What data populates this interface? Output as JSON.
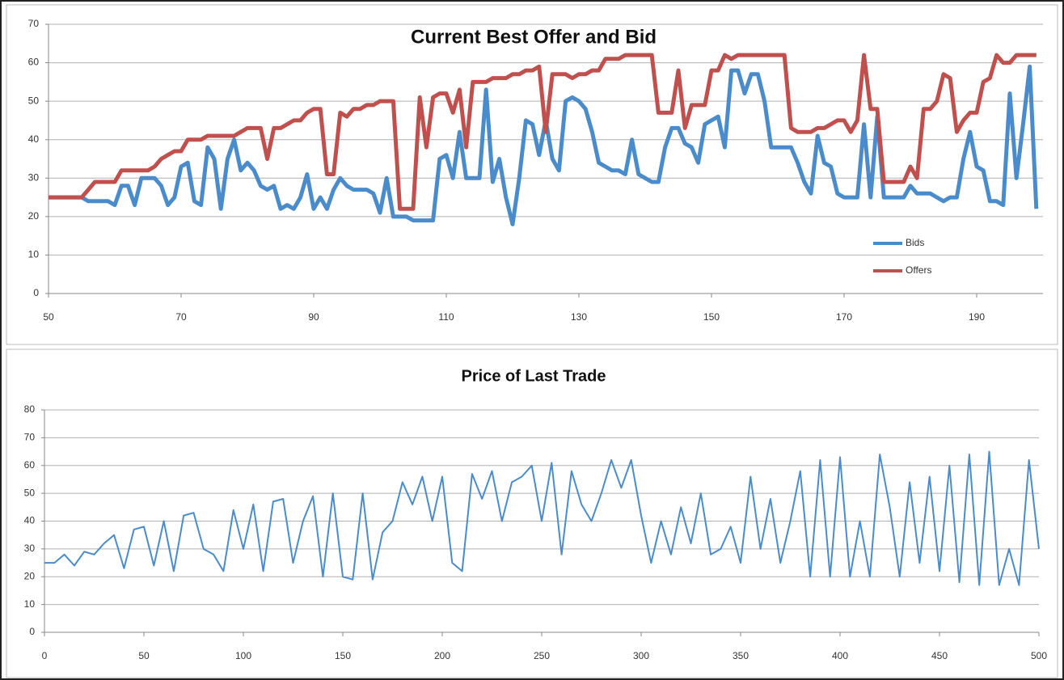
{
  "chart_data": [
    {
      "type": "line",
      "title": "Current Best Offer and Bid",
      "x": [
        50,
        51,
        52,
        53,
        54,
        55,
        56,
        57,
        58,
        59,
        60,
        61,
        62,
        63,
        64,
        65,
        66,
        67,
        68,
        69,
        70,
        71,
        72,
        73,
        74,
        75,
        76,
        77,
        78,
        79,
        80,
        81,
        82,
        83,
        84,
        85,
        86,
        87,
        88,
        89,
        90,
        91,
        92,
        93,
        94,
        95,
        96,
        97,
        98,
        99,
        100,
        101,
        102,
        103,
        104,
        105,
        106,
        107,
        108,
        109,
        110,
        111,
        112,
        113,
        114,
        115,
        116,
        117,
        118,
        119,
        120,
        121,
        122,
        123,
        124,
        125,
        126,
        127,
        128,
        129,
        130,
        131,
        132,
        133,
        134,
        135,
        136,
        137,
        138,
        139,
        140,
        141,
        142,
        143,
        144,
        145,
        146,
        147,
        148,
        149,
        150,
        151,
        152,
        153,
        154,
        155,
        156,
        157,
        158,
        159,
        160,
        161,
        162,
        163,
        164,
        165,
        166,
        167,
        168,
        169,
        170,
        171,
        172,
        173,
        174,
        175,
        176,
        177,
        178,
        179,
        180,
        181,
        182,
        183,
        184,
        185,
        186,
        187,
        188,
        189,
        190,
        191,
        192,
        193,
        194,
        195,
        196,
        197,
        198,
        199
      ],
      "series": [
        {
          "name": "Bids",
          "color": "#4a8ccb",
          "values": [
            25,
            25,
            25,
            25,
            25,
            25,
            24,
            24,
            24,
            24,
            23,
            28,
            28,
            23,
            30,
            30,
            30,
            28,
            23,
            25,
            33,
            34,
            24,
            23,
            38,
            35,
            22,
            35,
            40,
            32,
            34,
            32,
            28,
            27,
            28,
            22,
            23,
            22,
            25,
            31,
            22,
            25,
            22,
            27,
            30,
            28,
            27,
            27,
            27,
            26,
            21,
            30,
            20,
            20,
            20,
            19,
            19,
            19,
            19,
            35,
            36,
            30,
            42,
            30,
            30,
            30,
            53,
            29,
            35,
            25,
            18,
            30,
            45,
            44,
            36,
            45,
            35,
            32,
            50,
            51,
            50,
            48,
            42,
            34,
            33,
            32,
            32,
            31,
            40,
            31,
            30,
            29,
            29,
            38,
            43,
            43,
            39,
            38,
            34,
            44,
            45,
            46,
            38,
            58,
            58,
            52,
            57,
            57,
            50,
            38,
            38,
            38,
            38,
            34,
            29,
            26,
            41,
            34,
            33,
            26,
            25,
            25,
            25,
            44,
            25,
            46,
            25,
            25,
            25,
            25,
            28,
            26,
            26,
            26,
            25,
            24,
            25,
            25,
            35,
            42,
            33,
            32,
            24,
            24,
            23,
            52,
            30,
            44,
            59,
            22
          ]
        },
        {
          "name": "Offers",
          "color": "#c0504d",
          "values": [
            25,
            25,
            25,
            25,
            25,
            25,
            27,
            29,
            29,
            29,
            29,
            32,
            32,
            32,
            32,
            32,
            33,
            35,
            36,
            37,
            37,
            40,
            40,
            40,
            41,
            41,
            41,
            41,
            41,
            42,
            43,
            43,
            43,
            35,
            43,
            43,
            44,
            45,
            45,
            47,
            48,
            48,
            31,
            31,
            47,
            46,
            48,
            48,
            49,
            49,
            50,
            50,
            50,
            22,
            22,
            22,
            51,
            38,
            51,
            52,
            52,
            47,
            53,
            38,
            55,
            55,
            55,
            56,
            56,
            56,
            57,
            57,
            58,
            58,
            59,
            42,
            57,
            57,
            57,
            56,
            57,
            57,
            58,
            58,
            61,
            61,
            61,
            62,
            62,
            62,
            62,
            62,
            47,
            47,
            47,
            58,
            43,
            49,
            49,
            49,
            58,
            58,
            62,
            61,
            62,
            62,
            62,
            62,
            62,
            62,
            62,
            62,
            43,
            42,
            42,
            42,
            43,
            43,
            44,
            45,
            45,
            42,
            45,
            62,
            48,
            48,
            29,
            29,
            29,
            29,
            33,
            30,
            48,
            48,
            50,
            57,
            56,
            42,
            45,
            47,
            47,
            55,
            56,
            62,
            60,
            60,
            62,
            62,
            62,
            62
          ]
        }
      ],
      "xlim": [
        50,
        200
      ],
      "xticks": [
        50,
        70,
        90,
        110,
        130,
        150,
        170,
        190
      ],
      "ylim": [
        0,
        70
      ],
      "yticks": [
        0,
        10,
        20,
        30,
        40,
        50,
        60,
        70
      ],
      "grid": true,
      "legend": "lower right"
    },
    {
      "type": "line",
      "title": "Price of Last Trade",
      "x": [
        0,
        5,
        10,
        15,
        20,
        25,
        30,
        35,
        40,
        45,
        50,
        55,
        60,
        65,
        70,
        75,
        80,
        85,
        90,
        95,
        100,
        105,
        110,
        115,
        120,
        125,
        130,
        135,
        140,
        145,
        150,
        155,
        160,
        165,
        170,
        175,
        180,
        185,
        190,
        195,
        200,
        205,
        210,
        215,
        220,
        225,
        230,
        235,
        240,
        245,
        250,
        255,
        260,
        265,
        270,
        275,
        280,
        285,
        290,
        295,
        300,
        305,
        310,
        315,
        320,
        325,
        330,
        335,
        340,
        345,
        350,
        355,
        360,
        365,
        370,
        375,
        380,
        385,
        390,
        395,
        400,
        405,
        410,
        415,
        420,
        425,
        430,
        435,
        440,
        445,
        450,
        455,
        460,
        465,
        470,
        475,
        480,
        485,
        490,
        495,
        500
      ],
      "values": [
        25,
        25,
        28,
        24,
        29,
        28,
        32,
        35,
        23,
        37,
        38,
        24,
        40,
        22,
        42,
        43,
        30,
        28,
        22,
        44,
        30,
        46,
        22,
        47,
        48,
        25,
        40,
        49,
        20,
        50,
        20,
        19,
        50,
        19,
        36,
        40,
        54,
        46,
        56,
        40,
        56,
        25,
        22,
        57,
        48,
        58,
        40,
        54,
        56,
        60,
        40,
        61,
        28,
        58,
        46,
        40,
        50,
        62,
        52,
        62,
        42,
        25,
        40,
        28,
        45,
        32,
        50,
        28,
        30,
        38,
        25,
        56,
        30,
        48,
        25,
        40,
        58,
        20,
        62,
        20,
        63,
        20,
        40,
        20,
        64,
        45,
        20,
        54,
        25,
        56,
        22,
        60,
        18,
        64,
        17,
        65,
        17,
        30,
        17,
        62,
        30
      ],
      "color": "#4a8ccb",
      "xlim": [
        0,
        500
      ],
      "xticks": [
        0,
        50,
        100,
        150,
        200,
        250,
        300,
        350,
        400,
        450,
        500
      ],
      "ylim": [
        0,
        80
      ],
      "yticks": [
        0,
        10,
        20,
        30,
        40,
        50,
        60,
        70,
        80
      ],
      "grid": true
    }
  ]
}
